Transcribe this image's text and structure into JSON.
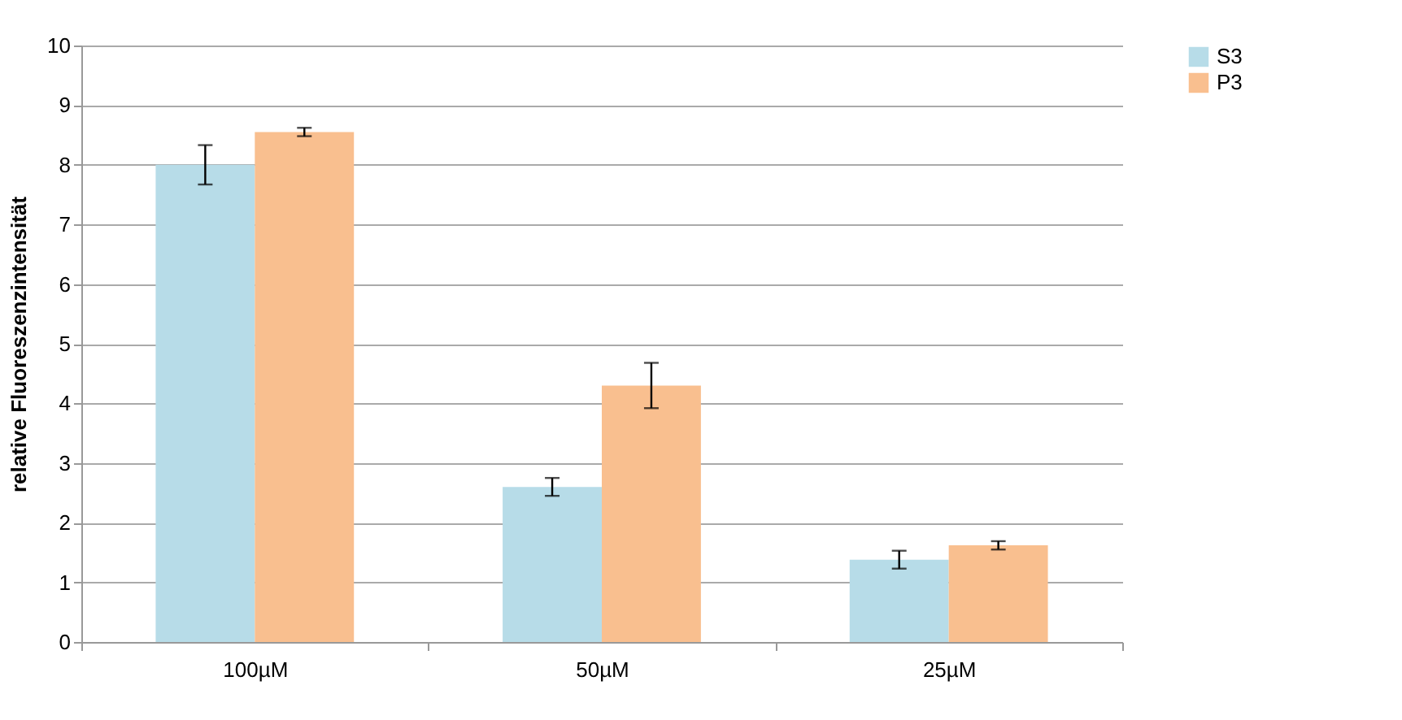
{
  "chart_data": {
    "type": "bar",
    "ylabel": "relative Fluoreszenzintensität",
    "categories": [
      "100µM",
      "50µM",
      "25µM"
    ],
    "series": [
      {
        "name": "S3",
        "color": "#b7dce8",
        "values": [
          8.0,
          2.6,
          1.38
        ],
        "errors": [
          0.33,
          0.15,
          0.15
        ]
      },
      {
        "name": "P3",
        "color": "#f9bf8f",
        "values": [
          8.55,
          4.3,
          1.62
        ],
        "errors": [
          0.07,
          0.38,
          0.07
        ]
      }
    ],
    "ylim": [
      0,
      10
    ],
    "yticks": [
      0,
      1,
      2,
      3,
      4,
      5,
      6,
      7,
      8,
      9,
      10
    ],
    "grid": "y",
    "legend": "right"
  }
}
